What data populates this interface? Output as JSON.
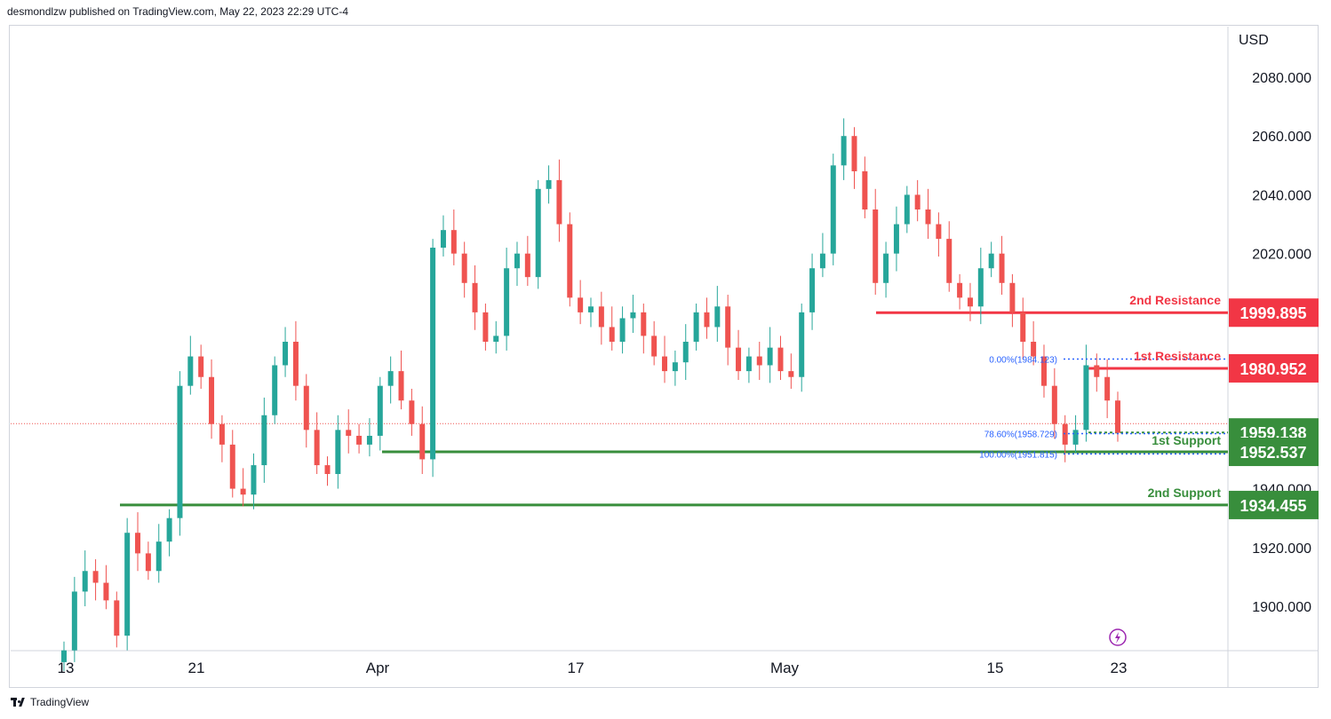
{
  "header": {
    "text": "desmondlzw published on TradingView.com, May 22, 2023 22:29 UTC-4"
  },
  "footer": {
    "brand": "TradingView"
  },
  "colors": {
    "up": "#26a69a",
    "down": "#ef5350",
    "resistance": "#f23645",
    "support": "#388e3c",
    "fib": "#2962ff",
    "axis_text": "#131722",
    "grid_border": "#d1d4dc"
  },
  "chart_data": {
    "type": "candlestick",
    "currency": "USD",
    "y_ticks": [
      "2080.000",
      "2060.000",
      "2040.000",
      "2020.000",
      "1940.000",
      "1920.000",
      "1900.000"
    ],
    "x_ticks": [
      "13",
      "21",
      "Apr",
      "17",
      "May",
      "15",
      "23"
    ],
    "ylim": [
      1885,
      2090
    ],
    "current_price": 1959.138,
    "levels": [
      {
        "name": "2nd Resistance",
        "label": "1999.895",
        "value": 1999.895,
        "kind": "resistance"
      },
      {
        "name": "1st Resistance",
        "label": "1980.952",
        "value": 1980.952,
        "kind": "resistance"
      },
      {
        "name": "1st Support",
        "label": "1959.138",
        "value": 1959.138,
        "kind": "support"
      },
      {
        "name": "",
        "label": "1952.537",
        "value": 1952.537,
        "kind": "support"
      },
      {
        "name": "2nd Support",
        "label": "1934.455",
        "value": 1934.455,
        "kind": "support"
      }
    ],
    "fib_labels": [
      {
        "text": "0.00%(1984.123)",
        "value": 1984.123
      },
      {
        "text": "78.60%(1958.729)",
        "value": 1958.729
      },
      {
        "text": "100.00%(1951.815)",
        "value": 1951.815
      }
    ],
    "closes": [
      1885,
      1905,
      1912,
      1908,
      1902,
      1890,
      1925,
      1918,
      1912,
      1922,
      1930,
      1975,
      1985,
      1978,
      1962,
      1955,
      1940,
      1938,
      1948,
      1965,
      1982,
      1990,
      1975,
      1960,
      1948,
      1945,
      1960,
      1958,
      1955,
      1958,
      1975,
      1980,
      1970,
      1962,
      1950,
      2022,
      2028,
      2020,
      2010,
      2000,
      1990,
      1992,
      2015,
      2020,
      2012,
      2042,
      2045,
      2030,
      2005,
      2000,
      2002,
      1995,
      1990,
      1998,
      2000,
      1992,
      1985,
      1980,
      1983,
      1990,
      2000,
      1995,
      2002,
      1988,
      1980,
      1985,
      1982,
      1988,
      1980,
      1978,
      2000,
      2015,
      2020,
      2050,
      2060,
      2048,
      2035,
      2010,
      2020,
      2030,
      2040,
      2035,
      2030,
      2025,
      2010,
      2005,
      2002,
      2015,
      2020,
      2010,
      2000,
      1990,
      1985,
      1975,
      1962,
      1955,
      1960,
      1982,
      1978,
      1970,
      1959
    ]
  }
}
